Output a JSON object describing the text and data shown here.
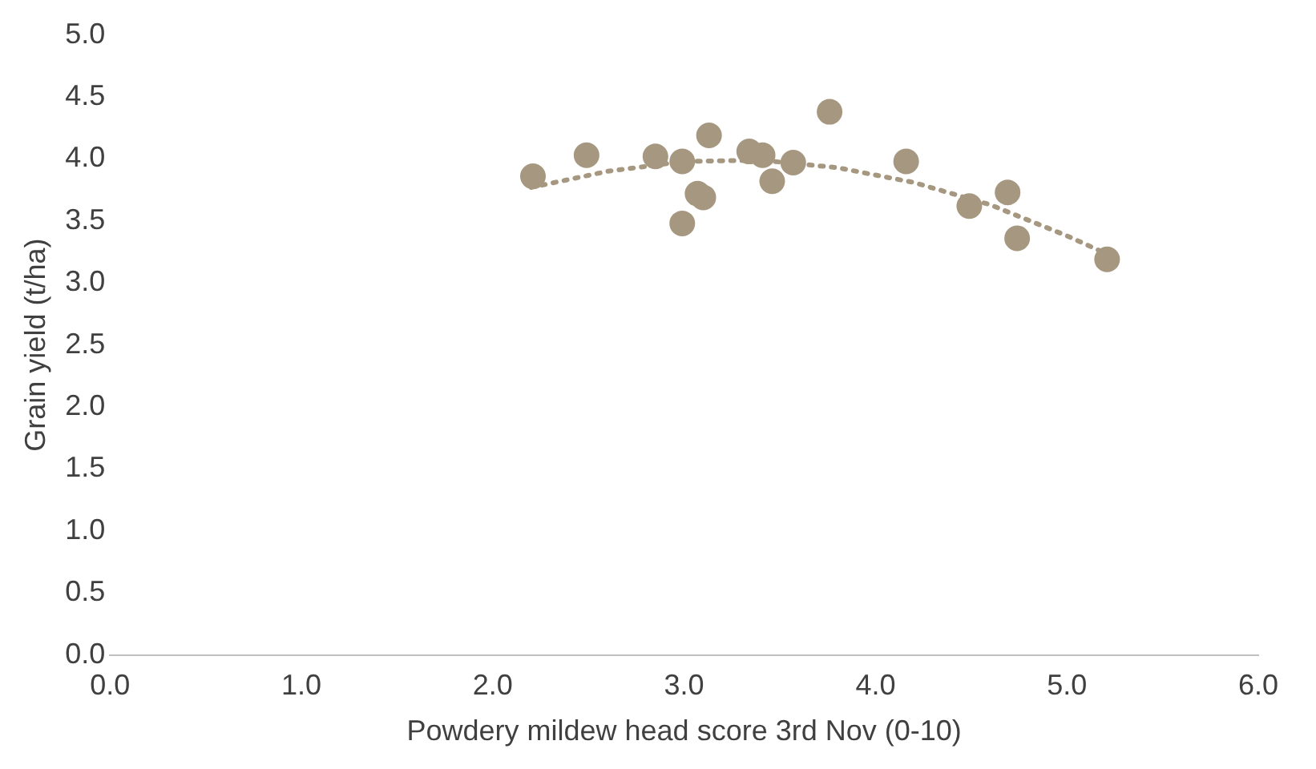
{
  "chart_data": {
    "type": "scatter",
    "xlabel": "Powdery mildew head score 3rd Nov (0-10)",
    "ylabel": "Grain yield (t/ha)",
    "xlim": [
      0,
      6
    ],
    "xticks": [
      {
        "value": 0,
        "label": "0.0"
      },
      {
        "value": 1,
        "label": "1.0"
      },
      {
        "value": 2,
        "label": "2.0"
      },
      {
        "value": 3,
        "label": "3.0"
      },
      {
        "value": 4,
        "label": "4.0"
      },
      {
        "value": 5,
        "label": "5.0"
      },
      {
        "value": 6,
        "label": "6.0"
      }
    ],
    "ylim": [
      0,
      5
    ],
    "yticks": [
      {
        "value": 0,
        "label": "0.0"
      },
      {
        "value": 0.5,
        "label": "0.5"
      },
      {
        "value": 1,
        "label": "1.0"
      },
      {
        "value": 1.5,
        "label": "1.5"
      },
      {
        "value": 2,
        "label": "2.0"
      },
      {
        "value": 2.5,
        "label": "2.5"
      },
      {
        "value": 3,
        "label": "3.0"
      },
      {
        "value": 3.5,
        "label": "3.5"
      },
      {
        "value": 4,
        "label": "4.0"
      },
      {
        "value": 4.5,
        "label": "4.5"
      },
      {
        "value": 5,
        "label": "5.0"
      }
    ],
    "grid": false,
    "legend": false,
    "marker": "circle",
    "series": [
      {
        "color": "#a69880",
        "x": [
          2.21,
          2.49,
          2.85,
          2.99,
          2.99,
          3.07,
          3.1,
          3.13,
          3.34,
          3.41,
          3.46,
          3.57,
          3.76,
          4.16,
          4.49,
          4.69,
          4.74,
          5.21
        ],
        "values": [
          3.86,
          4.03,
          4.02,
          3.98,
          3.48,
          3.72,
          3.69,
          4.19,
          4.06,
          4.03,
          3.82,
          3.97,
          4.38,
          3.98,
          3.62,
          3.73,
          3.36,
          3.19
        ]
      },
      {
        "type": "line",
        "color": "#a69880",
        "line_style": "dotted",
        "marker": "none",
        "x": [
          2.2,
          2.6,
          3.0,
          3.4,
          3.8,
          4.2,
          4.6,
          5.0,
          5.2
        ],
        "values": [
          3.77,
          3.9,
          3.98,
          3.99,
          3.93,
          3.81,
          3.63,
          3.38,
          3.24
        ]
      }
    ]
  }
}
